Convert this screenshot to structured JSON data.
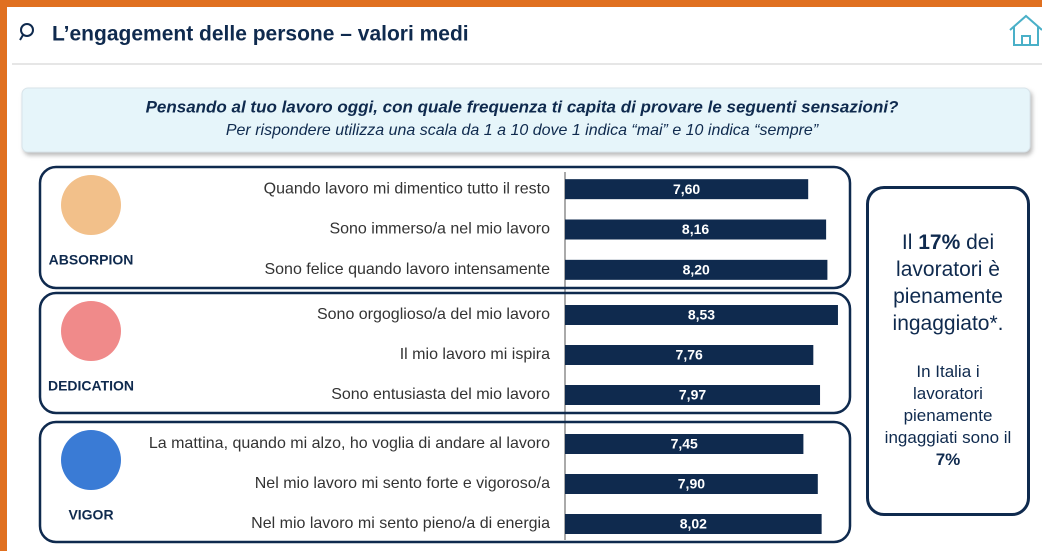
{
  "header": {
    "title": "L’engagement delle persone – valori medi"
  },
  "question": {
    "text": "Pensando al tuo lavoro oggi, con quale frequenza ti capita di provare le seguenti sensazioni?",
    "subtitle": "Per rispondere utilizza una scala da 1 a 10 dove 1 indica “mai” e 10 indica “sempre”"
  },
  "chart_data": {
    "type": "bar",
    "color": "#0f2a4e",
    "groups": [
      {
        "name": "ABSORPION",
        "categories": [
          "Quando lavoro mi dimentico tutto il resto",
          "Sono immerso/a nel mio lavoro",
          "Sono felice quando lavoro intensamente"
        ],
        "values": [
          7.6,
          8.16,
          8.2
        ],
        "value_labels": [
          "7,60",
          "8,16",
          "8,20"
        ]
      },
      {
        "name": "DEDICATION",
        "categories": [
          "Sono orgoglioso/a del mio lavoro",
          "Il mio lavoro mi ispira",
          "Sono entusiasta del mio lavoro"
        ],
        "values": [
          8.53,
          7.76,
          7.97
        ],
        "value_labels": [
          "8,53",
          "7,76",
          "7,97"
        ]
      },
      {
        "name": "VIGOR",
        "categories": [
          "La mattina, quando mi alzo, ho voglia di andare al lavoro",
          "Nel mio lavoro mi sento forte e vigoroso/a",
          "Nel mio lavoro mi sento pieno/a di energia"
        ],
        "values": [
          7.45,
          7.9,
          8.02
        ],
        "value_labels": [
          "7,45",
          "7,90",
          "8,02"
        ]
      }
    ]
  },
  "side_box": {
    "first": [
      "Il",
      "17%",
      "dei lavoratori è pienamente ingaggiato*."
    ],
    "second": [
      "In Italia i lavoratori pienamente ingaggiati sono il",
      "7%"
    ]
  }
}
